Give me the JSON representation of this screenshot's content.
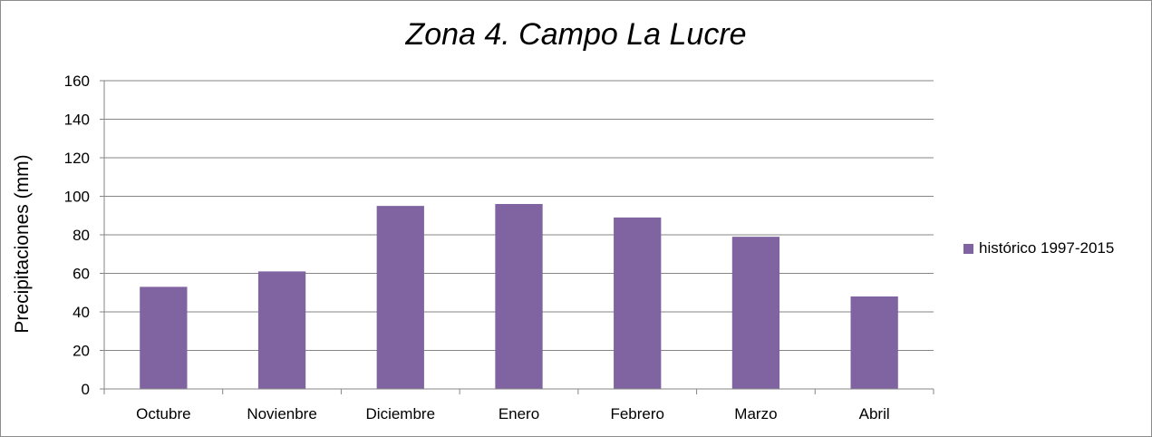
{
  "chart_data": {
    "type": "bar",
    "title": "Zona 4. Campo La Lucre",
    "xlabel": "",
    "ylabel": "Precipitaciones (mm)",
    "categories": [
      "Octubre",
      "Novienbre",
      "Diciembre",
      "Enero",
      "Febrero",
      "Marzo",
      "Abril"
    ],
    "series": [
      {
        "name": "histórico 1997-2015",
        "values": [
          53,
          61,
          95,
          96,
          89,
          79,
          48
        ],
        "color": "#8064a2"
      }
    ],
    "ylim": [
      0,
      160
    ],
    "yticks": [
      0,
      20,
      40,
      60,
      80,
      100,
      120,
      140,
      160
    ],
    "grid": true,
    "legend_position": "right"
  }
}
